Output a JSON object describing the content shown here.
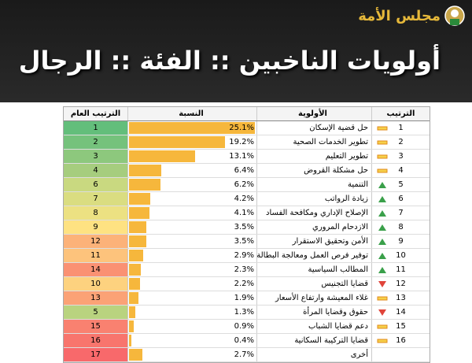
{
  "header": {
    "logo_text": "مجلس الأمة",
    "title": "أولويات الناخبين :: الفئة :: الرجال"
  },
  "table": {
    "columns": {
      "overall_rank": "الترتيب العام",
      "share": "النسبة",
      "priority": "الأولوية",
      "rank": "الترتيب"
    },
    "bar_color": "#f6b73c",
    "rows": [
      {
        "rank": 1,
        "trend": "flat",
        "priority": "حل قضية الإسكان",
        "share": 25.1,
        "share_label": "25.1%",
        "overall_rank": 1,
        "color": "#63be7b"
      },
      {
        "rank": 2,
        "trend": "flat",
        "priority": "تطوير الخدمات الصحية",
        "share": 19.2,
        "share_label": "19.2%",
        "overall_rank": 2,
        "color": "#75c27c"
      },
      {
        "rank": 3,
        "trend": "flat",
        "priority": "تطوير التعليم",
        "share": 13.1,
        "share_label": "13.1%",
        "overall_rank": 3,
        "color": "#8dc87d"
      },
      {
        "rank": 4,
        "trend": "flat",
        "priority": "حل مشكلة القروض",
        "share": 6.4,
        "share_label": "6.4%",
        "overall_rank": 4,
        "color": "#a6cd7e"
      },
      {
        "rank": 5,
        "trend": "up",
        "priority": "التنمية",
        "share": 6.2,
        "share_label": "6.2%",
        "overall_rank": 6,
        "color": "#c9d980"
      },
      {
        "rank": 6,
        "trend": "up",
        "priority": "زيادة الرواتب",
        "share": 4.2,
        "share_label": "4.2%",
        "overall_rank": 7,
        "color": "#dadd81"
      },
      {
        "rank": 7,
        "trend": "up",
        "priority": "الإصلاح الإداري ومكافحة الفساد",
        "share": 4.1,
        "share_label": "4.1%",
        "overall_rank": 8,
        "color": "#ece182"
      },
      {
        "rank": 8,
        "trend": "up",
        "priority": "الازدحام المروري",
        "share": 3.5,
        "share_label": "3.5%",
        "overall_rank": 9,
        "color": "#fee282"
      },
      {
        "rank": 9,
        "trend": "up",
        "priority": "الأمن وتحقيق الاستقرار",
        "share": 3.5,
        "share_label": "3.5%",
        "overall_rank": 12,
        "color": "#fcb279"
      },
      {
        "rank": 10,
        "trend": "up",
        "priority": "توفير فرص العمل ومعالجة البطالة",
        "share": 2.9,
        "share_label": "2.9%",
        "overall_rank": 11,
        "color": "#fdc37c"
      },
      {
        "rank": 11,
        "trend": "up",
        "priority": "المطالب السياسية",
        "share": 2.3,
        "share_label": "2.3%",
        "overall_rank": 14,
        "color": "#fa9173"
      },
      {
        "rank": 12,
        "trend": "down",
        "priority": "قضايا التجنيس",
        "share": 2.2,
        "share_label": "2.2%",
        "overall_rank": 10,
        "color": "#fdd27f"
      },
      {
        "rank": 13,
        "trend": "flat",
        "priority": "غلاء المعيشة وارتفاع الأسعار",
        "share": 1.9,
        "share_label": "1.9%",
        "overall_rank": 13,
        "color": "#fba276"
      },
      {
        "rank": 14,
        "trend": "down",
        "priority": "حقوق وقضايا المرأة",
        "share": 1.3,
        "share_label": "1.3%",
        "overall_rank": 5,
        "color": "#b9d37f"
      },
      {
        "rank": 15,
        "trend": "flat",
        "priority": "دعم قضايا الشباب",
        "share": 0.9,
        "share_label": "0.9%",
        "overall_rank": 15,
        "color": "#f98170"
      },
      {
        "rank": 16,
        "trend": "flat",
        "priority": "قضايا التركيبة السكانية",
        "share": 0.4,
        "share_label": "0.4%",
        "overall_rank": 16,
        "color": "#f8756d"
      },
      {
        "rank": null,
        "trend": null,
        "priority": "أخرى",
        "share": 2.7,
        "share_label": "2.7%",
        "overall_rank": 17,
        "color": "#f8696b"
      }
    ]
  }
}
